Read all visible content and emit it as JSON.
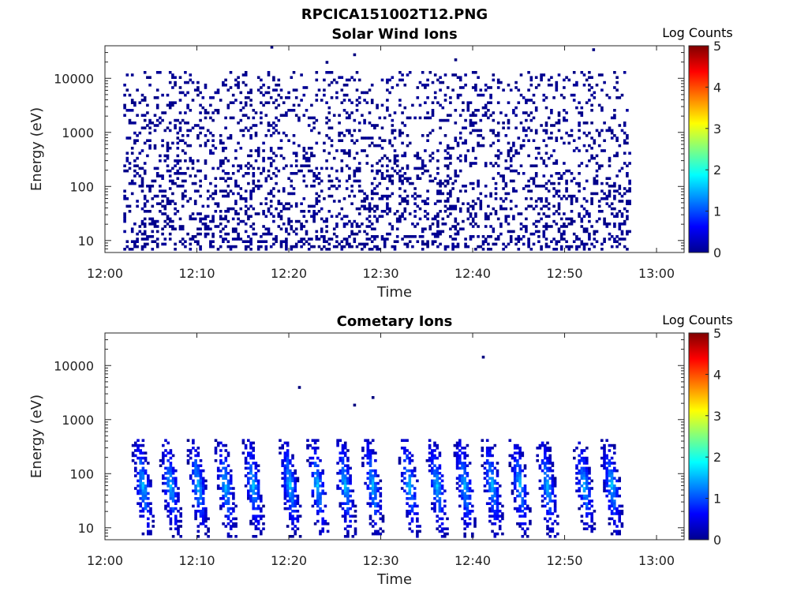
{
  "figure": {
    "title": "RPCICA151002T12.PNG"
  },
  "chart_data": [
    {
      "type": "heatmap",
      "title": "Solar Wind Ions",
      "xlabel": "Time",
      "ylabel": "Energy (eV)",
      "x_ticks": [
        "12:00",
        "12:10",
        "12:20",
        "12:30",
        "12:40",
        "12:50",
        "13:00"
      ],
      "xlim": [
        "12:00",
        "13:03"
      ],
      "data_time_range": [
        "12:02",
        "12:57"
      ],
      "y_ticks": [
        "10",
        "100",
        "1000",
        "10000"
      ],
      "ylim": [
        6,
        40000
      ],
      "yscale": "log",
      "energy_range_eV": [
        6,
        13000
      ],
      "colorbar": {
        "title": "Log Counts",
        "ticks": [
          "0",
          "1",
          "2",
          "3",
          "4",
          "5"
        ],
        "range": [
          0,
          5
        ],
        "colormap": "jet"
      },
      "dominant_log_counts": 0,
      "sparse_high_energy_events": [
        {
          "time": "12:18",
          "energy_eV": 38000,
          "log_counts": 0
        },
        {
          "time": "12:24",
          "energy_eV": 22000,
          "log_counts": 0
        },
        {
          "time": "12:27",
          "energy_eV": 28000,
          "log_counts": 0
        },
        {
          "time": "12:38",
          "energy_eV": 24000,
          "log_counts": 0
        },
        {
          "time": "12:53",
          "energy_eV": 37000,
          "log_counts": 0
        }
      ]
    },
    {
      "type": "heatmap",
      "title": "Cometary Ions",
      "xlabel": "Time",
      "ylabel": "Energy (eV)",
      "x_ticks": [
        "12:00",
        "12:10",
        "12:20",
        "12:30",
        "12:40",
        "12:50",
        "13:00"
      ],
      "xlim": [
        "12:00",
        "13:03"
      ],
      "data_time_range": [
        "12:02",
        "12:57"
      ],
      "y_ticks": [
        "10",
        "100",
        "1000",
        "10000"
      ],
      "ylim": [
        6,
        40000
      ],
      "yscale": "log",
      "colorbar": {
        "title": "Log Counts",
        "ticks": [
          "0",
          "1",
          "2",
          "3",
          "4",
          "5"
        ],
        "range": [
          0,
          5
        ],
        "colormap": "jet"
      },
      "periodic_bursts": {
        "times": [
          "12:04",
          "12:07",
          "12:10",
          "12:13",
          "12:16",
          "12:20",
          "12:23",
          "12:26",
          "12:29",
          "12:33",
          "12:36",
          "12:39",
          "12:42",
          "12:45",
          "12:48",
          "12:52",
          "12:55"
        ],
        "energy_range_eV": [
          6,
          450
        ],
        "peak_energy_eV": 60,
        "peak_log_counts": 1.5
      },
      "isolated_events": [
        {
          "time": "12:21",
          "energy_eV": 4200,
          "log_counts": 0
        },
        {
          "time": "12:27",
          "energy_eV": 1900,
          "log_counts": 0
        },
        {
          "time": "12:29",
          "energy_eV": 2800,
          "log_counts": 0
        },
        {
          "time": "12:41",
          "energy_eV": 15000,
          "log_counts": 0
        }
      ]
    }
  ]
}
